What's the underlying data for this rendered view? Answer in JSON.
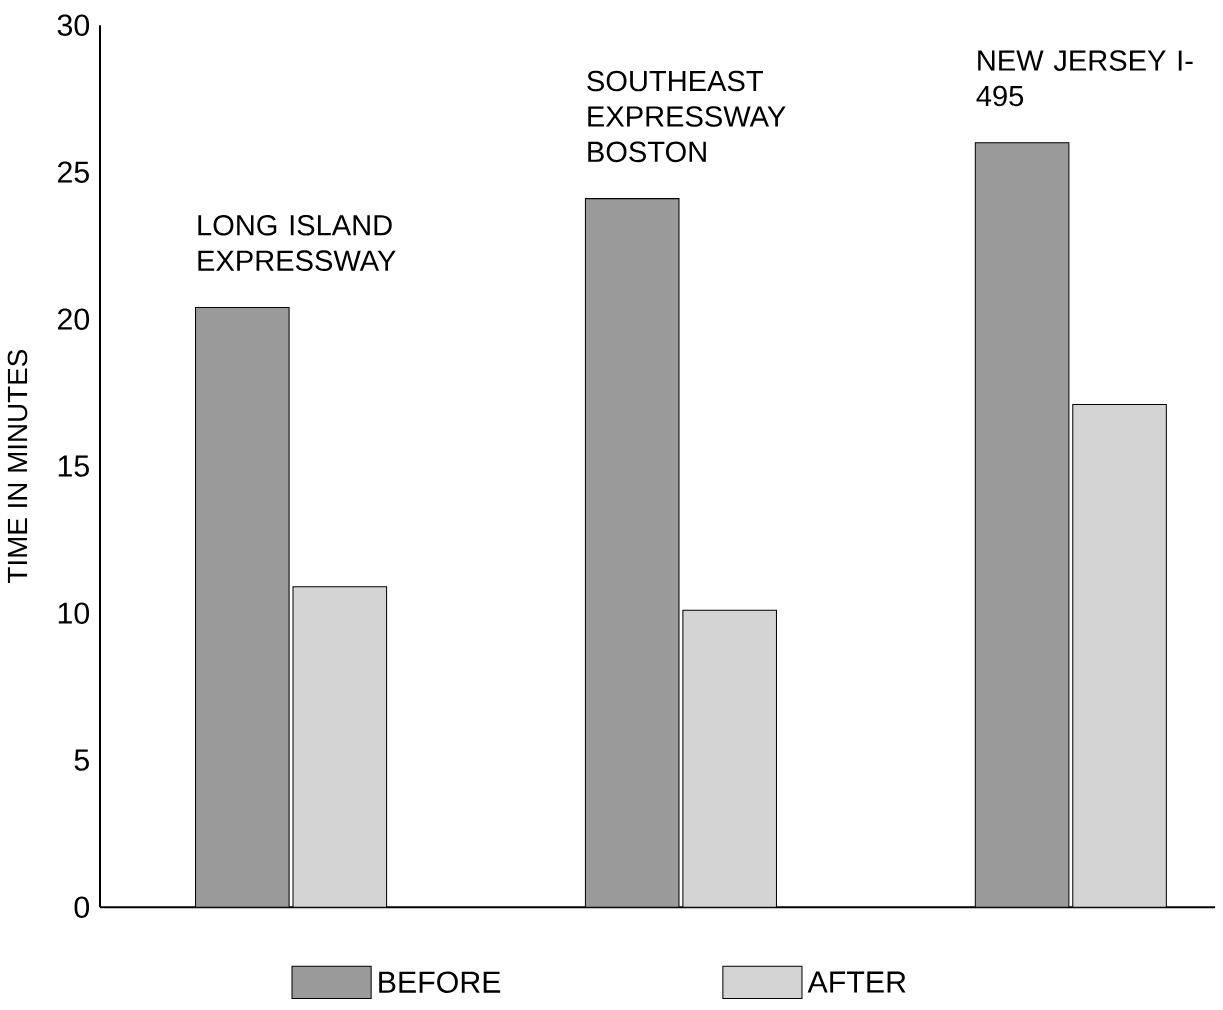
{
  "chart_data": {
    "type": "bar",
    "ylabel": "TIME IN MINUTES",
    "categories": [
      "LONG ISLAND EXPRESSWAY",
      "SOUTHEAST EXPRESSWAY BOSTON",
      "NEW JERSEY I-495"
    ],
    "series": [
      {
        "name": "BEFORE",
        "color": "#9a9a9a",
        "values": [
          20.4,
          24.1,
          26.0
        ]
      },
      {
        "name": "AFTER",
        "color": "#d4d4d4",
        "values": [
          10.9,
          10.1,
          17.1
        ]
      }
    ],
    "ylim": [
      0,
      30
    ],
    "yticks": [
      0,
      5,
      10,
      15,
      20,
      25,
      30
    ],
    "grid": false,
    "legend": "bottom"
  }
}
